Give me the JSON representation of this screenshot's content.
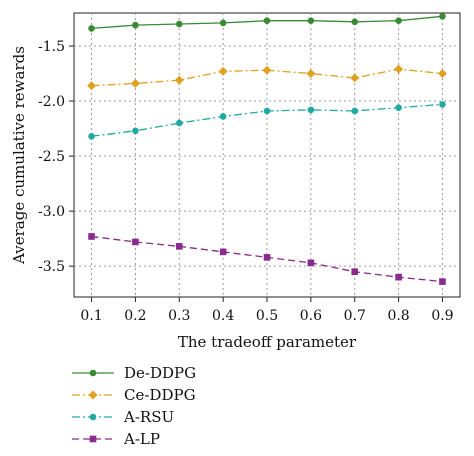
{
  "chart_data": {
    "type": "line",
    "title": "",
    "xlabel": "The tradeoff parameter",
    "ylabel": "Average cumulative rewards",
    "x": [
      0.1,
      0.2,
      0.3,
      0.4,
      0.5,
      0.6,
      0.7,
      0.8,
      0.9
    ],
    "x_tick_labels": [
      "0.1",
      "0.2",
      "0.3",
      "0.4",
      "0.5",
      "0.6",
      "0.7",
      "0.8",
      "0.9"
    ],
    "xlim": [
      0.06,
      0.94
    ],
    "ylim": [
      -3.78,
      -1.2
    ],
    "y_ticks": [
      -1.5,
      -2.0,
      -2.5,
      -3.0,
      -3.5
    ],
    "y_tick_labels": [
      "-1.5",
      "-2.0",
      "-2.5",
      "-3.0",
      "-3.5"
    ],
    "grid": true,
    "legend_position": "below",
    "series": [
      {
        "name": "De-DDPG",
        "color": "#3a8a35",
        "marker": "circle",
        "dash": "solid",
        "values": [
          -1.34,
          -1.31,
          -1.3,
          -1.29,
          -1.27,
          -1.27,
          -1.28,
          -1.27,
          -1.23
        ]
      },
      {
        "name": "Ce-DDPG",
        "color": "#e0a020",
        "marker": "diamond",
        "dash": "dashdot",
        "values": [
          -1.86,
          -1.84,
          -1.81,
          -1.73,
          -1.72,
          -1.75,
          -1.79,
          -1.71,
          -1.75
        ]
      },
      {
        "name": "A-RSU",
        "color": "#1fa9a0",
        "marker": "circle",
        "dash": "dashdot",
        "values": [
          -2.32,
          -2.27,
          -2.2,
          -2.14,
          -2.09,
          -2.08,
          -2.09,
          -2.06,
          -2.03
        ]
      },
      {
        "name": "A-LP",
        "color": "#8a2a8c",
        "marker": "square",
        "dash": "dashed",
        "values": [
          -3.23,
          -3.28,
          -3.32,
          -3.37,
          -3.42,
          -3.47,
          -3.55,
          -3.6,
          -3.64
        ]
      }
    ]
  }
}
